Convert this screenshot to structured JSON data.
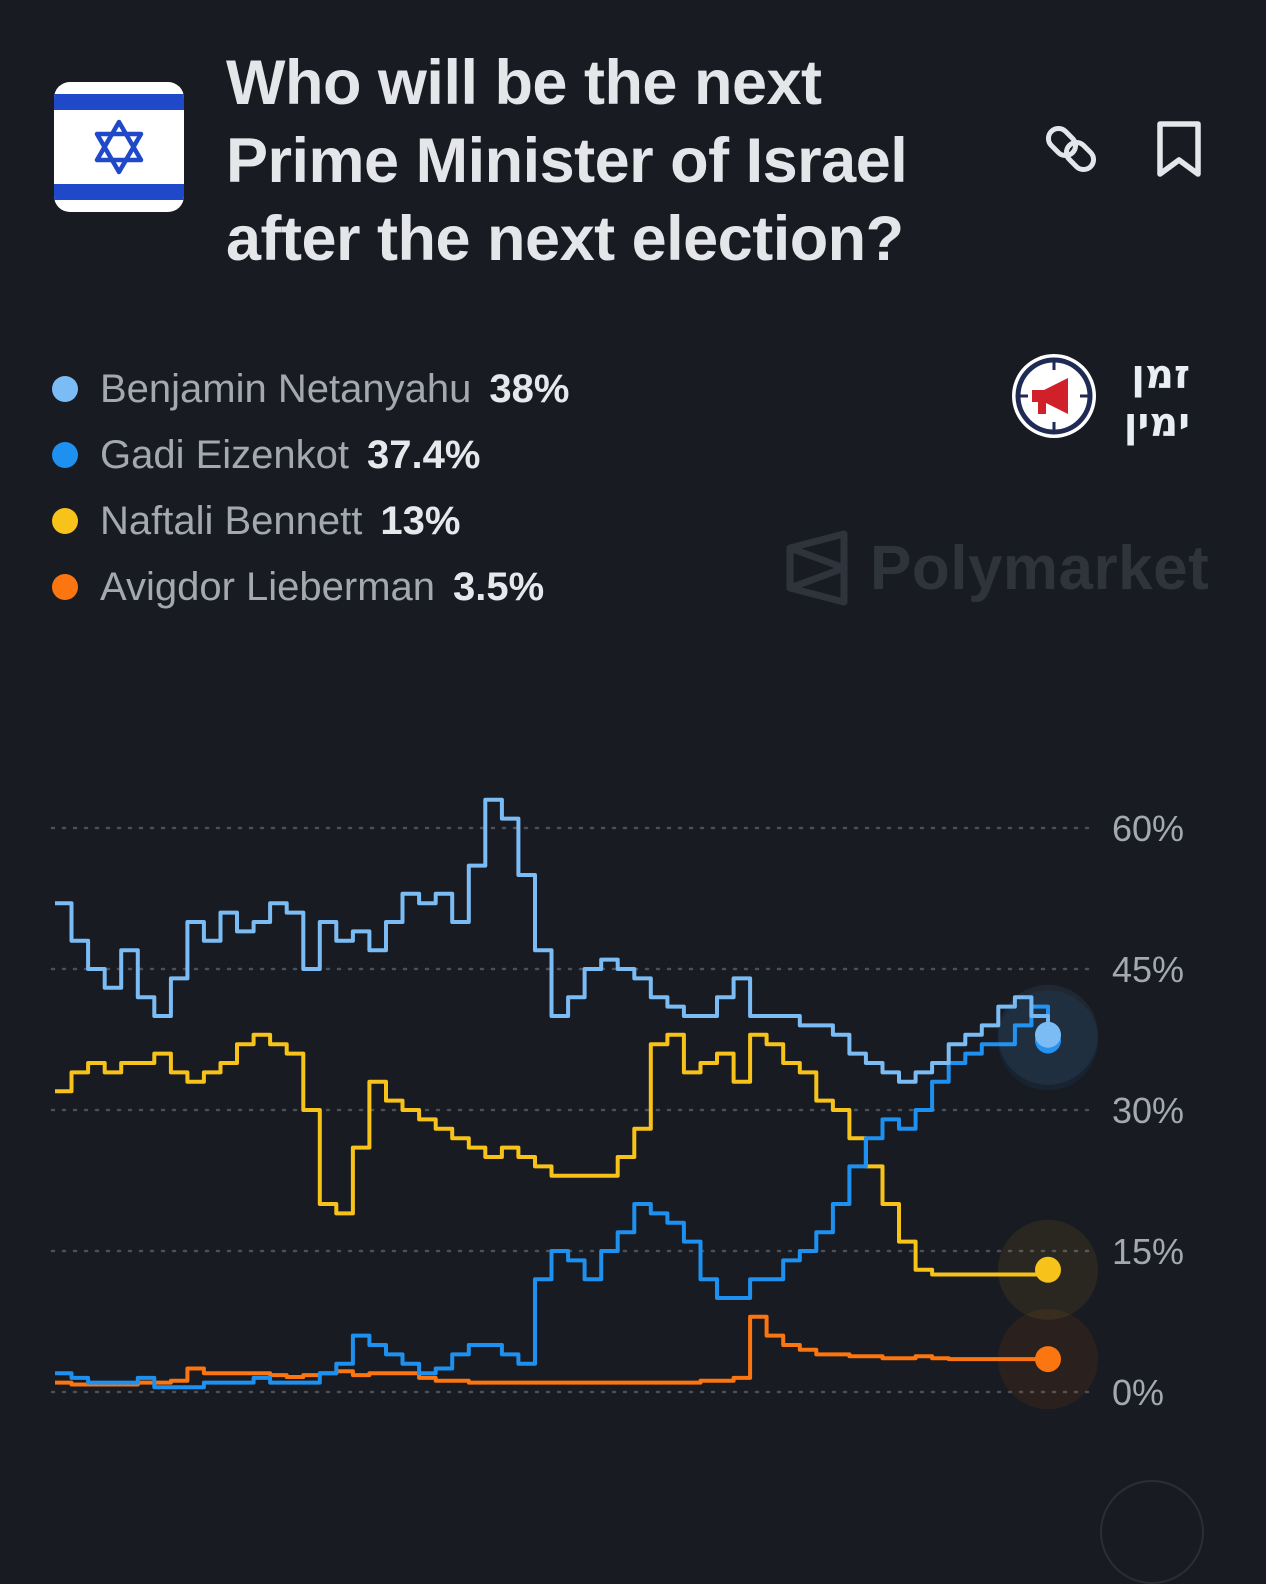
{
  "question": {
    "title_lines": [
      "Who will be the next",
      "Prime Minister of Israel",
      "after the next election?"
    ]
  },
  "icons": {
    "flag": "israel-flag-icon",
    "share": "link-icon",
    "save": "bookmark-icon",
    "channel": "megaphone-clock-icon",
    "platform": "polymarket-logo-icon"
  },
  "channel_logo_text": [
    "זמן",
    "ימין"
  ],
  "watermark": {
    "name": "Polymarket"
  },
  "legend": [
    {
      "name": "Benjamin Netanyahu",
      "value": "38%",
      "color": "#7cbcf5"
    },
    {
      "name": "Gadi Eizenkot",
      "value": "37.4%",
      "color": "#1e90f0"
    },
    {
      "name": "Naftali Bennett",
      "value": "13%",
      "color": "#f7c21a"
    },
    {
      "name": "Avigdor Lieberman",
      "value": "3.5%",
      "color": "#fb7510"
    }
  ],
  "chart_data": {
    "type": "line",
    "title": "",
    "xlabel": "",
    "ylabel": "",
    "ylim": [
      0,
      60
    ],
    "yticks": [
      60,
      45,
      30,
      15,
      0
    ],
    "ytick_labels": [
      "60%",
      "45%",
      "30%",
      "15%",
      "0%"
    ],
    "grid": "dotted horizontal",
    "x": [
      0,
      1,
      2,
      3,
      4,
      5,
      6,
      7,
      8,
      9,
      10,
      11,
      12,
      13,
      14,
      15,
      16,
      17,
      18,
      19,
      20,
      21,
      22,
      23,
      24,
      25,
      26,
      27,
      28,
      29,
      30,
      31,
      32,
      33,
      34,
      35,
      36,
      37,
      38,
      39,
      40,
      41,
      42,
      43,
      44,
      45,
      46,
      47,
      48,
      49,
      50,
      51,
      52,
      53,
      54,
      55,
      56,
      57,
      58,
      59,
      60
    ],
    "series": [
      {
        "name": "Benjamin Netanyahu",
        "color": "#7cbcf5",
        "values": [
          52,
          48,
          45,
          43,
          47,
          42,
          40,
          44,
          50,
          48,
          51,
          49,
          50,
          52,
          51,
          45,
          50,
          48,
          49,
          47,
          50,
          53,
          52,
          53,
          50,
          56,
          63,
          61,
          55,
          47,
          40,
          42,
          45,
          46,
          45,
          44,
          42,
          41,
          40,
          40,
          42,
          44,
          40,
          40,
          40,
          39,
          39,
          38,
          36,
          35,
          34,
          33,
          34,
          35,
          37,
          38,
          39,
          41,
          42,
          40,
          38
        ]
      },
      {
        "name": "Gadi Eizenkot",
        "color": "#1e90f0",
        "values": [
          2,
          1.5,
          1,
          1,
          1,
          1.5,
          0.5,
          0.5,
          0.5,
          1,
          1,
          1,
          1.5,
          1,
          1,
          1,
          2,
          3,
          6,
          5,
          4,
          3,
          2,
          2.5,
          4,
          5,
          5,
          4,
          3,
          12,
          15,
          14,
          12,
          15,
          17,
          20,
          19,
          18,
          16,
          12,
          10,
          10,
          12,
          12,
          14,
          15,
          17,
          20,
          24,
          27,
          29,
          28,
          30,
          33,
          35,
          36,
          37,
          37,
          39,
          41,
          37.4
        ]
      },
      {
        "name": "Naftali Bennett",
        "color": "#f7c21a",
        "values": [
          32,
          34,
          35,
          34,
          35,
          35,
          36,
          34,
          33,
          34,
          35,
          37,
          38,
          37,
          36,
          30,
          20,
          19,
          26,
          33,
          31,
          30,
          29,
          28,
          27,
          26,
          25,
          26,
          25,
          24,
          23,
          23,
          23,
          23,
          25,
          28,
          37,
          38,
          34,
          35,
          36,
          33,
          38,
          37,
          35,
          34,
          31,
          30,
          27,
          24,
          20,
          16,
          13,
          12.5,
          12.5,
          12.5,
          12.5,
          12.5,
          12.5,
          12.5,
          13
        ]
      },
      {
        "name": "Avigdor Lieberman",
        "color": "#fb7510",
        "values": [
          1,
          0.8,
          0.8,
          0.8,
          0.8,
          1,
          1,
          1.2,
          2.5,
          2,
          2,
          2,
          2,
          1.8,
          1.6,
          1.8,
          2,
          2.2,
          1.8,
          2,
          2,
          2,
          1.5,
          1.2,
          1.2,
          1,
          1,
          1,
          1,
          1,
          1,
          1,
          1,
          1,
          1,
          1,
          1,
          1,
          1,
          1.2,
          1.2,
          1.5,
          8,
          6,
          5,
          4.5,
          4,
          4,
          3.8,
          3.8,
          3.6,
          3.6,
          3.8,
          3.6,
          3.5,
          3.5,
          3.5,
          3.5,
          3.5,
          3.5,
          3.5
        ]
      }
    ]
  }
}
